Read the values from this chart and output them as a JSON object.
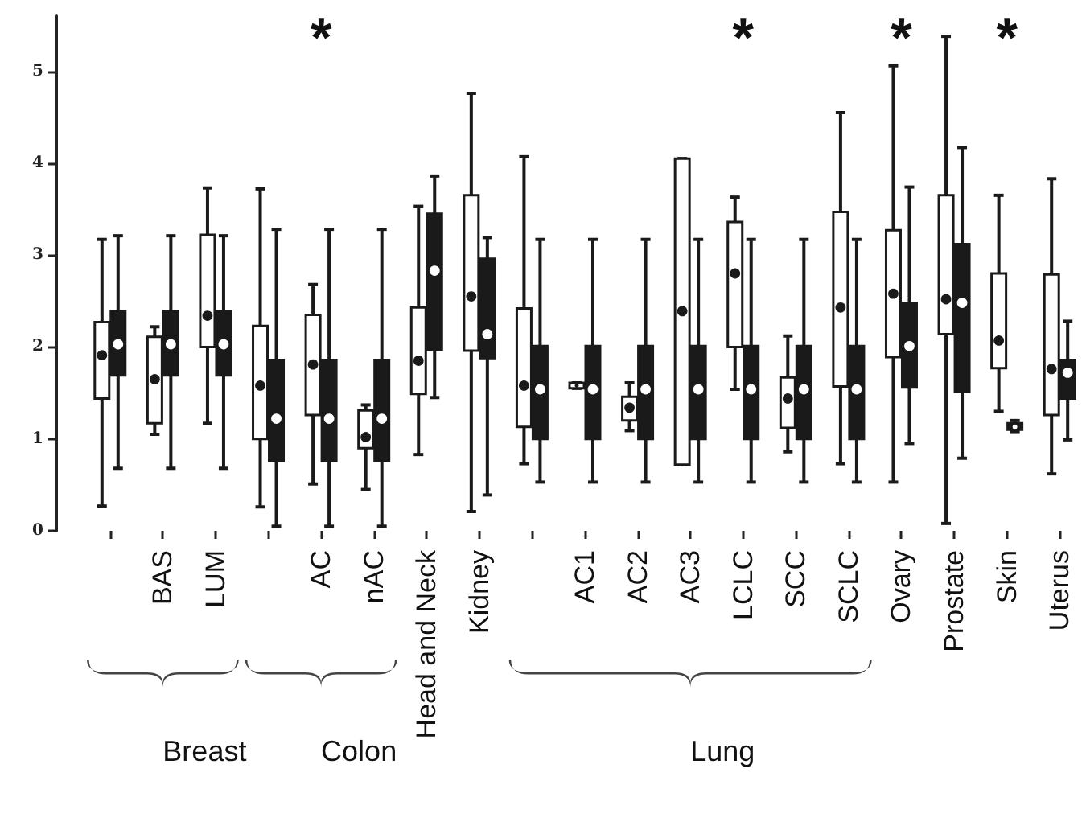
{
  "chart_data": {
    "type": "box",
    "categories": [
      null,
      "BAS",
      "LUM",
      null,
      "AC",
      "nAC",
      "Head and Neck",
      "Kidney",
      null,
      "AC1",
      "AC2",
      "AC3",
      "LCLC",
      "SCC",
      "SCLC",
      "Ovary",
      "Prostate",
      "Skin",
      "Uterus"
    ],
    "ylim": [
      0,
      5.6
    ],
    "yticks": [
      0,
      1,
      2,
      3,
      4,
      5
    ],
    "grid": false,
    "annotations": [
      "Breast",
      "Colon",
      "Lung",
      "*",
      "*",
      "*",
      "*"
    ],
    "series": [
      {
        "color": "#ffffff",
        "boxes": [
          {
            "low": 0.27,
            "q1": 1.44,
            "median": 1.91,
            "q3": 2.27,
            "high": 3.17
          },
          {
            "low": 1.05,
            "q1": 1.17,
            "median": 1.65,
            "q3": 2.11,
            "high": 2.22
          },
          {
            "low": 1.17,
            "q1": 2.0,
            "median": 2.34,
            "q3": 3.22,
            "high": 3.73
          },
          {
            "low": 0.26,
            "q1": 1.0,
            "median": 1.58,
            "q3": 2.23,
            "high": 3.72
          },
          {
            "low": 0.51,
            "q1": 1.26,
            "median": 1.81,
            "q3": 2.35,
            "high": 2.68
          },
          {
            "low": 0.45,
            "q1": 0.9,
            "median": 1.02,
            "q3": 1.31,
            "high": 1.37
          },
          {
            "low": 0.83,
            "q1": 1.49,
            "median": 1.85,
            "q3": 2.43,
            "high": 3.53
          },
          {
            "low": 0.21,
            "q1": 1.96,
            "median": 2.55,
            "q3": 3.65,
            "high": 4.76
          },
          {
            "low": 0.73,
            "q1": 1.13,
            "median": 1.58,
            "q3": 2.42,
            "high": 4.07
          },
          {
            "low": 1.55,
            "q1": 1.55,
            "median": 1.58,
            "q3": 1.61,
            "high": 1.61
          },
          {
            "low": 1.09,
            "q1": 1.2,
            "median": 1.34,
            "q3": 1.46,
            "high": 1.61
          },
          {
            "low": 0.72,
            "q1": 0.72,
            "median": 2.39,
            "q3": 4.05,
            "high": 4.05
          },
          {
            "low": 1.54,
            "q1": 2.0,
            "median": 2.8,
            "q3": 3.36,
            "high": 3.63
          },
          {
            "low": 0.86,
            "q1": 1.12,
            "median": 1.44,
            "q3": 1.67,
            "high": 2.12
          },
          {
            "low": 0.73,
            "q1": 1.57,
            "median": 2.43,
            "q3": 3.47,
            "high": 4.55
          },
          {
            "low": 0.53,
            "q1": 1.89,
            "median": 2.58,
            "q3": 3.27,
            "high": 5.06
          },
          {
            "low": 0.08,
            "q1": 2.14,
            "median": 2.52,
            "q3": 3.65,
            "high": 5.38
          },
          {
            "low": 1.3,
            "q1": 1.77,
            "median": 2.07,
            "q3": 2.8,
            "high": 3.65
          },
          {
            "low": 0.62,
            "q1": 1.26,
            "median": 1.76,
            "q3": 2.79,
            "high": 3.83
          }
        ]
      },
      {
        "color": "#1a1a1a",
        "boxes": [
          {
            "low": 0.68,
            "q1": 1.69,
            "median": 2.03,
            "q3": 2.39,
            "high": 3.21
          },
          {
            "low": 0.68,
            "q1": 1.69,
            "median": 2.03,
            "q3": 2.39,
            "high": 3.21
          },
          {
            "low": 0.68,
            "q1": 1.69,
            "median": 2.03,
            "q3": 2.39,
            "high": 3.21
          },
          {
            "low": 0.05,
            "q1": 0.76,
            "median": 1.22,
            "q3": 1.86,
            "high": 3.28
          },
          {
            "low": 0.05,
            "q1": 0.76,
            "median": 1.22,
            "q3": 1.86,
            "high": 3.28
          },
          {
            "low": 0.05,
            "q1": 0.76,
            "median": 1.22,
            "q3": 1.86,
            "high": 3.28
          },
          {
            "low": 1.45,
            "q1": 1.97,
            "median": 2.83,
            "q3": 3.45,
            "high": 3.86
          },
          {
            "low": 0.39,
            "q1": 1.88,
            "median": 2.14,
            "q3": 2.96,
            "high": 3.19
          },
          {
            "low": 0.53,
            "q1": 1.0,
            "median": 1.54,
            "q3": 2.01,
            "high": 3.17
          },
          {
            "low": 0.53,
            "q1": 1.0,
            "median": 1.54,
            "q3": 2.01,
            "high": 3.17
          },
          {
            "low": 0.53,
            "q1": 1.0,
            "median": 1.54,
            "q3": 2.01,
            "high": 3.17
          },
          {
            "low": 0.53,
            "q1": 1.0,
            "median": 1.54,
            "q3": 2.01,
            "high": 3.17
          },
          {
            "low": 0.53,
            "q1": 1.0,
            "median": 1.54,
            "q3": 2.01,
            "high": 3.17
          },
          {
            "low": 0.53,
            "q1": 1.0,
            "median": 1.54,
            "q3": 2.01,
            "high": 3.17
          },
          {
            "low": 0.53,
            "q1": 1.0,
            "median": 1.54,
            "q3": 2.01,
            "high": 3.17
          },
          {
            "low": 0.95,
            "q1": 1.56,
            "median": 2.01,
            "q3": 2.48,
            "high": 3.74
          },
          {
            "low": 0.79,
            "q1": 1.51,
            "median": 2.48,
            "q3": 3.12,
            "high": 4.17
          },
          {
            "low": 1.08,
            "q1": 1.1,
            "median": 1.13,
            "q3": 1.17,
            "high": 1.2
          },
          {
            "low": 0.99,
            "q1": 1.44,
            "median": 1.72,
            "q3": 1.86,
            "high": 2.28
          }
        ]
      }
    ]
  }
}
